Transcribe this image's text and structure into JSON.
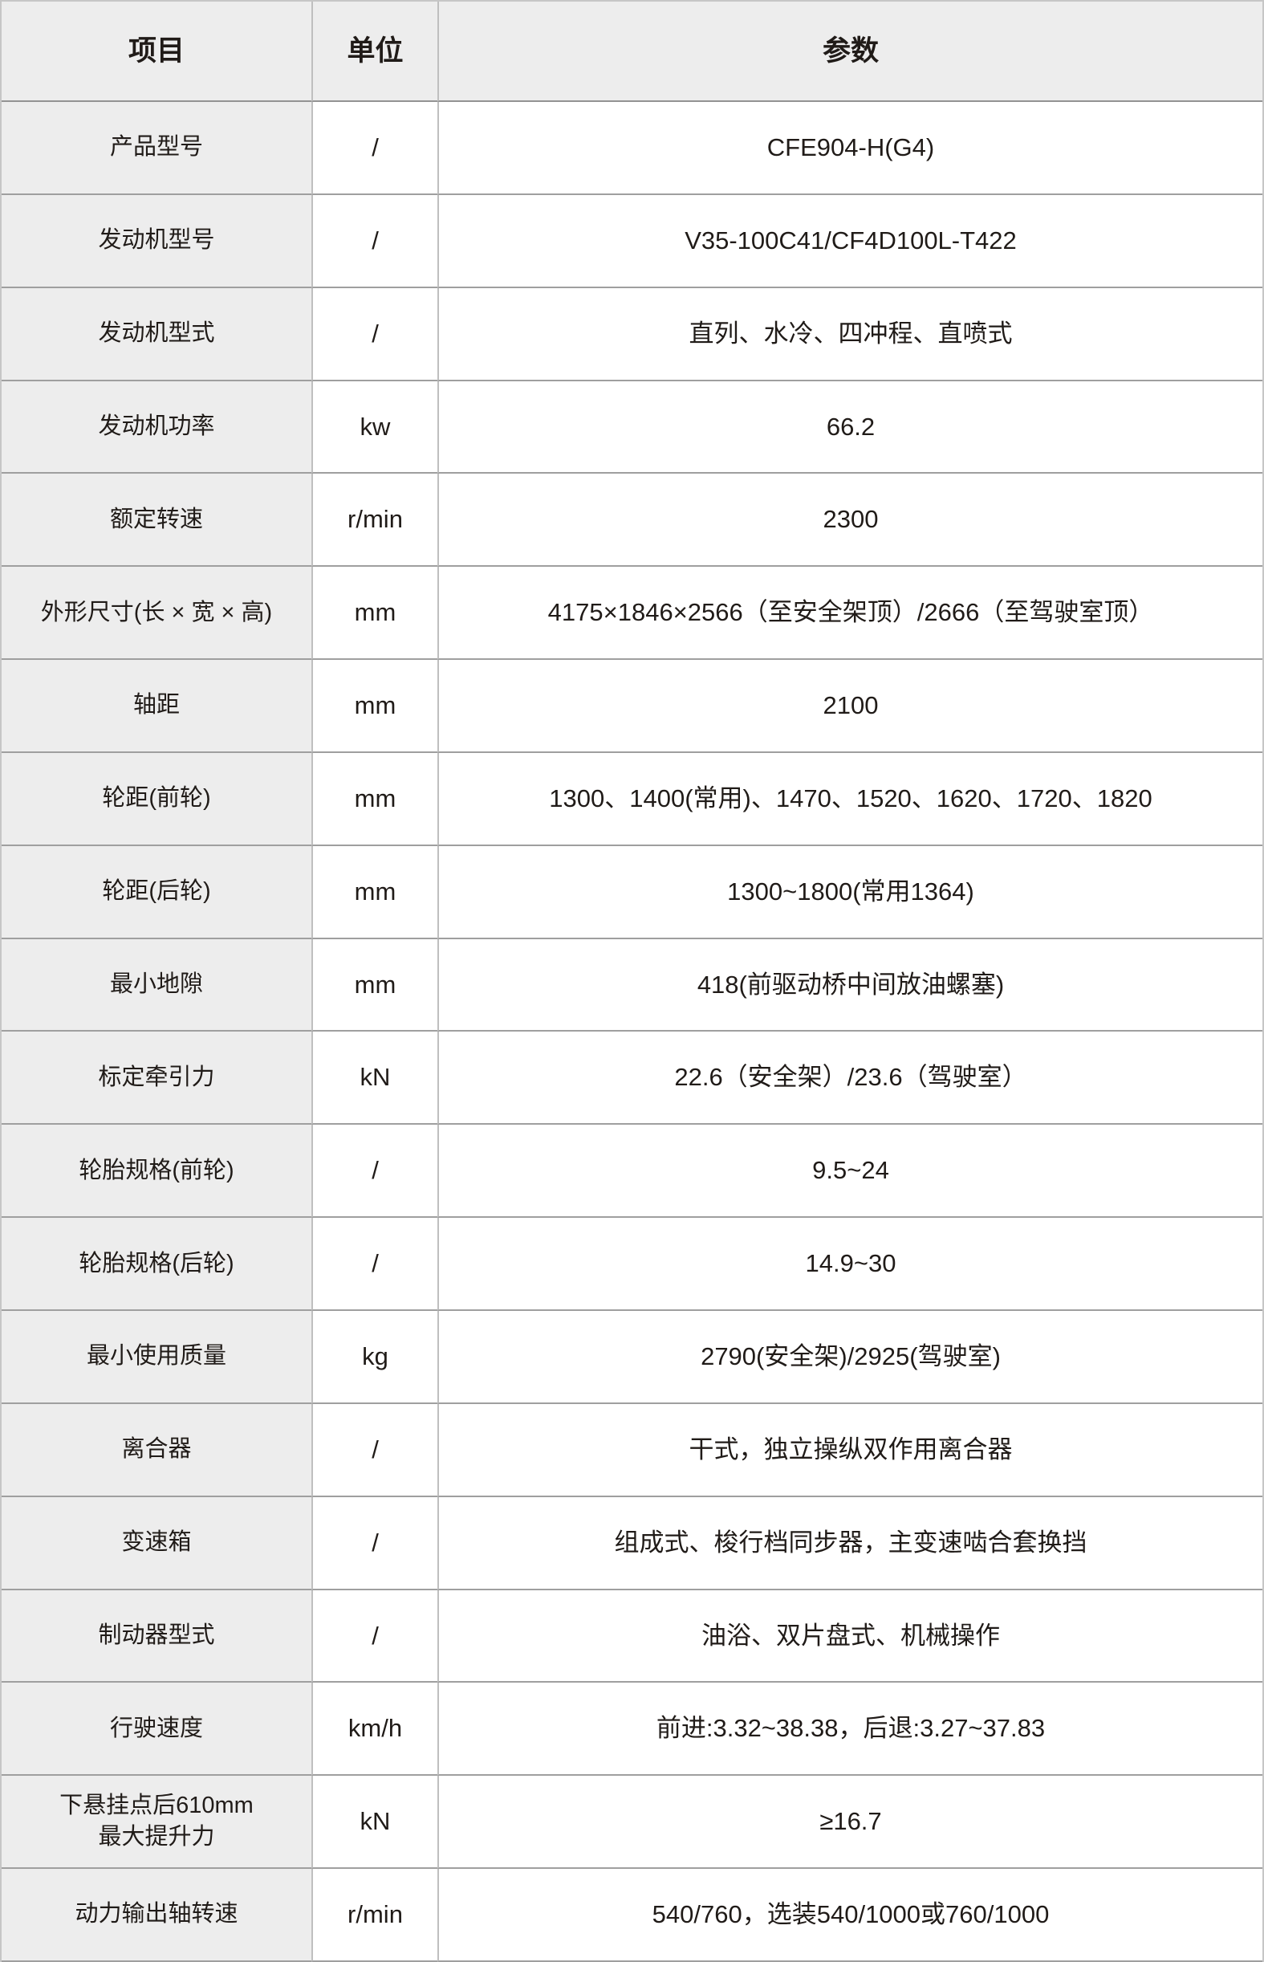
{
  "table": {
    "headers": {
      "item": "项目",
      "unit": "单位",
      "value": "参数"
    },
    "rows": [
      {
        "item": "产品型号",
        "unit": "/",
        "value": "CFE904-H(G4)"
      },
      {
        "item": "发动机型号",
        "unit": "/",
        "value": "V35-100C41/CF4D100L-T422"
      },
      {
        "item": "发动机型式",
        "unit": "/",
        "value": "直列、水冷、四冲程、直喷式"
      },
      {
        "item": "发动机功率",
        "unit": "kw",
        "value": "66.2"
      },
      {
        "item": "额定转速",
        "unit": "r/min",
        "value": "2300"
      },
      {
        "item": "外形尺寸(长 × 宽 × 高)",
        "unit": "mm",
        "value": "4175×1846×2566（至安全架顶）/2666（至驾驶室顶）"
      },
      {
        "item": "轴距",
        "unit": "mm",
        "value": "2100"
      },
      {
        "item": "轮距(前轮)",
        "unit": "mm",
        "value": "1300、1400(常用)、1470、1520、1620、1720、1820"
      },
      {
        "item": "轮距(后轮)",
        "unit": "mm",
        "value": "1300~1800(常用1364)"
      },
      {
        "item": "最小地隙",
        "unit": "mm",
        "value": "418(前驱动桥中间放油螺塞)"
      },
      {
        "item": "标定牵引力",
        "unit": "kN",
        "value": "22.6（安全架）/23.6（驾驶室）"
      },
      {
        "item": "轮胎规格(前轮)",
        "unit": "/",
        "value": "9.5~24"
      },
      {
        "item": "轮胎规格(后轮)",
        "unit": "/",
        "value": "14.9~30"
      },
      {
        "item": "最小使用质量",
        "unit": "kg",
        "value": "2790(安全架)/2925(驾驶室)"
      },
      {
        "item": "离合器",
        "unit": "/",
        "value": "干式，独立操纵双作用离合器"
      },
      {
        "item": "变速箱",
        "unit": "/",
        "value": "组成式、梭行档同步器，主变速啮合套换挡"
      },
      {
        "item": "制动器型式",
        "unit": "/",
        "value": "油浴、双片盘式、机械操作"
      },
      {
        "item": "行驶速度",
        "unit": "km/h",
        "value": "前进:3.32~38.38，后退:3.27~37.83"
      },
      {
        "item": "下悬挂点后610mm\n最大提升力",
        "unit": "kN",
        "value": "≥16.7"
      },
      {
        "item": "动力输出轴转速",
        "unit": "r/min",
        "value": "540/760，选装540/1000或760/1000"
      }
    ]
  },
  "colors": {
    "header_bg": "#ededed",
    "label_bg": "#ededed",
    "row_line": "#9f9f9f",
    "col_line": "#bfbfbf",
    "outer_line": "#c6c6c6",
    "text": "#201b18"
  }
}
